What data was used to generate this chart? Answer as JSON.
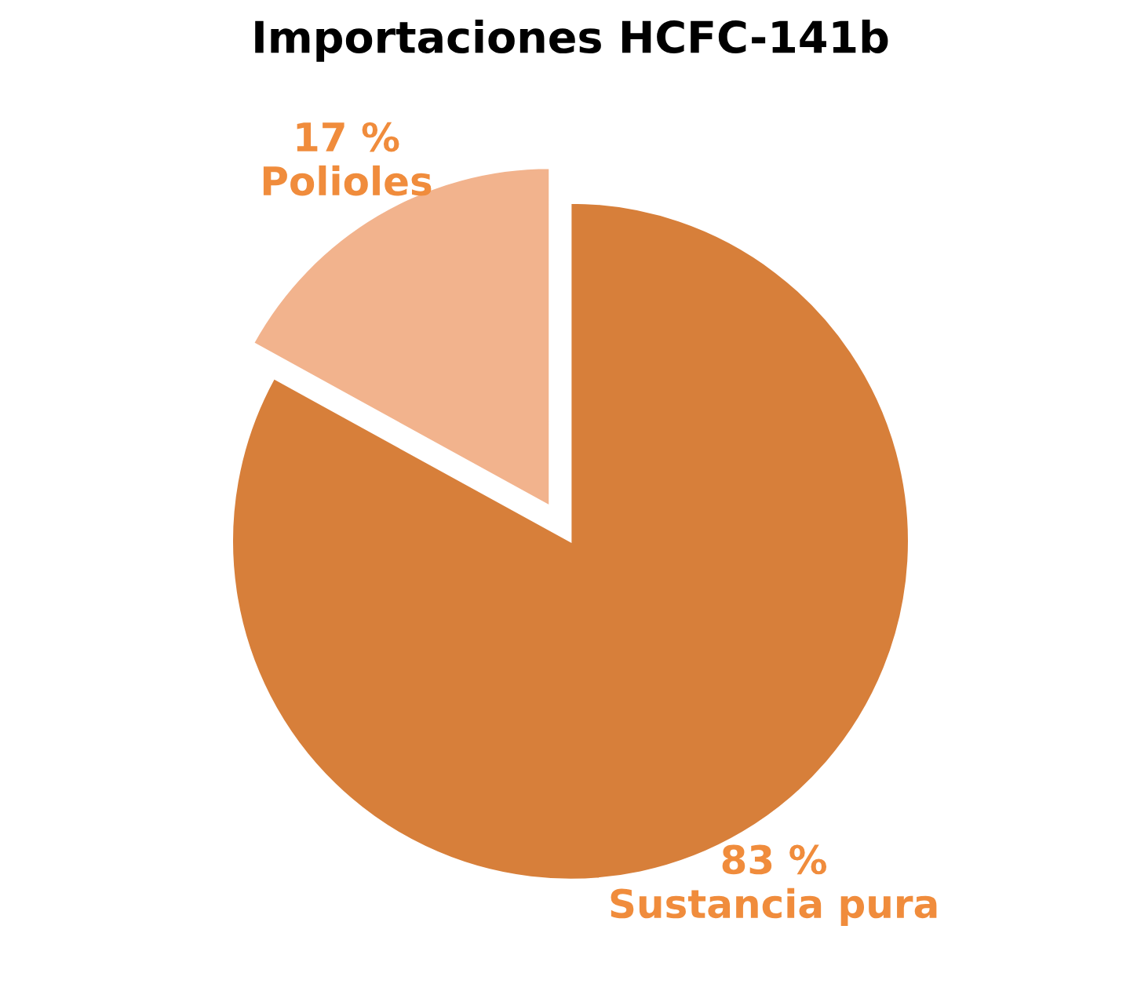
{
  "chart_data": {
    "type": "pie",
    "title": "Importaciones HCFC-141b",
    "categories": [
      "Polioles",
      "Sustancia pura"
    ],
    "values": [
      17,
      83
    ],
    "colors": [
      "#f2b38d",
      "#d77f3a"
    ],
    "value_labels": [
      "17 %",
      "83 %"
    ]
  }
}
